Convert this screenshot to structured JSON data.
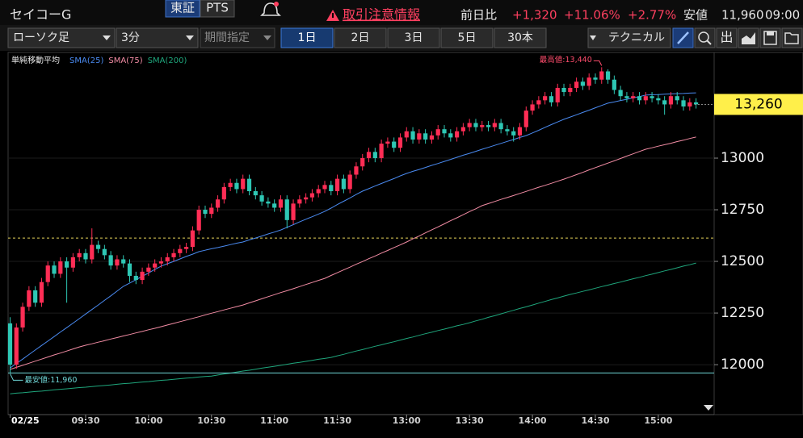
{
  "header": {
    "stock_name": "セイコーG",
    "market_tabs": [
      "東証",
      "PTS"
    ],
    "alert": "取引注意情報",
    "change_label": "前日比",
    "change": "+1,320",
    "change_pct": "+11.06%",
    "other_pct": "+2.77%",
    "low_label": "安値",
    "low": "11,960",
    "low_time": "09:00"
  },
  "toolbar": {
    "chart_type": "ローソク足",
    "interval": "3分",
    "period": "期間指定",
    "ranges": [
      "1日",
      "2日",
      "3日",
      "5日",
      "30本"
    ],
    "active_range": 0,
    "technical": "テクニカル",
    "icon_text": "出"
  },
  "chart_data": {
    "type": "candlestick",
    "title": "単純移動平均",
    "categories": [
      "02/25",
      null,
      null,
      null,
      null,
      null,
      null,
      null,
      null,
      null,
      null,
      null,
      "09:30",
      null,
      null,
      null,
      null,
      null,
      null,
      null,
      null,
      null,
      "10:00",
      null,
      null,
      null,
      null,
      null,
      null,
      null,
      null,
      null,
      "10:30",
      null,
      null,
      null,
      null,
      null,
      null,
      null,
      null,
      null,
      "11:00",
      null,
      null,
      null,
      null,
      null,
      null,
      null,
      null,
      null,
      "11:30",
      null,
      null,
      null,
      null,
      null,
      null,
      null,
      null,
      null,
      null,
      "13:00",
      null,
      null,
      null,
      null,
      null,
      null,
      null,
      null,
      null,
      "13:30",
      null,
      null,
      null,
      null,
      null,
      null,
      null,
      null,
      null,
      "14:00",
      null,
      null,
      null,
      null,
      null,
      null,
      null,
      null,
      null,
      "14:30",
      null,
      null,
      null,
      null,
      null,
      null,
      null,
      null,
      null,
      "15:00",
      null,
      null,
      null,
      null,
      null,
      null
    ],
    "open": [
      12200,
      12000,
      12180,
      12280,
      12360,
      12300,
      12400,
      12480,
      12440,
      12500,
      12470,
      12520,
      12540,
      12510,
      12580,
      12560,
      12530,
      12480,
      12510,
      12490,
      12430,
      12410,
      12450,
      12470,
      12490,
      12500,
      12520,
      12540,
      12560,
      12570,
      12650,
      12750,
      12730,
      12760,
      12800,
      12860,
      12880,
      12850,
      12900,
      12840,
      12820,
      12790,
      12780,
      12760,
      12800,
      12700,
      12780,
      12800,
      12810,
      12830,
      12850,
      12870,
      12840,
      12900,
      12850,
      12920,
      12960,
      13000,
      13030,
      13000,
      13070,
      13080,
      13050,
      13100,
      13130,
      13090,
      13120,
      13090,
      13110,
      13140,
      13120,
      13100,
      13130,
      13150,
      13170,
      13150,
      13160,
      13150,
      13170,
      13140,
      13130,
      13110,
      13150,
      13230,
      13260,
      13280,
      13300,
      13270,
      13340,
      13320,
      13340,
      13370,
      13350,
      13390,
      13380,
      13420,
      13380,
      13330,
      13300,
      13290,
      13300,
      13280,
      13300,
      13290,
      13280,
      13260,
      13300,
      13280,
      13250,
      13270
    ],
    "high": [
      12230,
      12200,
      12300,
      12380,
      12380,
      12420,
      12500,
      12500,
      12520,
      12520,
      12540,
      12560,
      12560,
      12660,
      12600,
      12580,
      12550,
      12530,
      12530,
      12510,
      12450,
      12470,
      12490,
      12510,
      12520,
      12540,
      12560,
      12580,
      12590,
      12670,
      12770,
      12770,
      12780,
      12820,
      12880,
      12900,
      12900,
      12920,
      12920,
      12860,
      12840,
      12810,
      12800,
      12820,
      12820,
      12800,
      12820,
      12830,
      12850,
      12870,
      12890,
      12890,
      12920,
      12920,
      12940,
      12980,
      13020,
      13050,
      13050,
      13090,
      13100,
      13100,
      13120,
      13150,
      13150,
      13140,
      13140,
      13130,
      13160,
      13160,
      13140,
      13150,
      13170,
      13190,
      13190,
      13180,
      13180,
      13190,
      13190,
      13160,
      13150,
      13170,
      13250,
      13280,
      13300,
      13320,
      13320,
      13360,
      13360,
      13360,
      13390,
      13390,
      13410,
      13410,
      13440,
      13430,
      13400,
      13350,
      13320,
      13320,
      13320,
      13320,
      13320,
      13310,
      13300,
      13320,
      13320,
      13300,
      13290,
      13290
    ],
    "low": [
      11960,
      11980,
      12160,
      12260,
      12280,
      12280,
      12380,
      12420,
      12420,
      12300,
      12450,
      12500,
      12490,
      12490,
      12540,
      12510,
      12460,
      12460,
      12470,
      12400,
      12390,
      12390,
      12430,
      12450,
      12470,
      12480,
      12500,
      12520,
      12540,
      12550,
      12630,
      12710,
      12710,
      12740,
      12780,
      12840,
      12830,
      12830,
      12820,
      12800,
      12770,
      12760,
      12740,
      12740,
      12660,
      12680,
      12760,
      12780,
      12790,
      12810,
      12830,
      12820,
      12820,
      12830,
      12830,
      12900,
      12940,
      12980,
      12980,
      12980,
      13050,
      13030,
      13030,
      13080,
      13070,
      13070,
      13070,
      13070,
      13090,
      13100,
      13080,
      13080,
      13110,
      13130,
      13130,
      13130,
      13130,
      13130,
      13120,
      13110,
      13080,
      13090,
      13130,
      13210,
      13240,
      13260,
      13250,
      13250,
      13300,
      13300,
      13320,
      13330,
      13330,
      13360,
      13360,
      13360,
      13310,
      13280,
      13270,
      13270,
      13260,
      13260,
      13270,
      13260,
      13210,
      13240,
      13260,
      13230,
      13230,
      13240
    ],
    "close": [
      12000,
      12180,
      12280,
      12360,
      12300,
      12400,
      12480,
      12440,
      12500,
      12470,
      12520,
      12540,
      12510,
      12580,
      12560,
      12530,
      12480,
      12510,
      12490,
      12430,
      12410,
      12450,
      12470,
      12490,
      12500,
      12520,
      12540,
      12560,
      12570,
      12650,
      12750,
      12730,
      12760,
      12800,
      12860,
      12880,
      12850,
      12900,
      12840,
      12820,
      12790,
      12780,
      12760,
      12800,
      12700,
      12780,
      12800,
      12810,
      12830,
      12850,
      12870,
      12840,
      12900,
      12850,
      12920,
      12960,
      13000,
      13030,
      13000,
      13070,
      13080,
      13050,
      13100,
      13130,
      13090,
      13120,
      13090,
      13110,
      13140,
      13120,
      13100,
      13130,
      13150,
      13170,
      13150,
      13160,
      13150,
      13170,
      13140,
      13130,
      13110,
      13150,
      13230,
      13260,
      13280,
      13300,
      13270,
      13340,
      13320,
      13340,
      13370,
      13350,
      13390,
      13380,
      13420,
      13380,
      13330,
      13300,
      13290,
      13300,
      13280,
      13300,
      13290,
      13280,
      13260,
      13300,
      13280,
      13250,
      13270,
      13260
    ],
    "up_color": "#ff2d55",
    "down_color": "#2ec7b4",
    "series": [
      {
        "name": "SMA(25)",
        "color": "#4a8af0",
        "values": [
          11984,
          12006,
          12027,
          12049,
          12071,
          12093,
          12114,
          12136,
          12158,
          12179,
          12201,
          12223,
          12245,
          12267,
          12289,
          12311,
          12333,
          12356,
          12379,
          12395,
          12411,
          12428,
          12444,
          12461,
          12477,
          12489,
          12500,
          12512,
          12524,
          12535,
          12547,
          12554,
          12561,
          12567,
          12574,
          12581,
          12588,
          12594,
          12604,
          12613,
          12623,
          12633,
          12642,
          12652,
          12665,
          12678,
          12691,
          12704,
          12716,
          12729,
          12742,
          12758,
          12775,
          12791,
          12807,
          12824,
          12840,
          12852,
          12865,
          12877,
          12889,
          12901,
          12914,
          12926,
          12936,
          12945,
          12955,
          12965,
          12974,
          12984,
          12994,
          13004,
          13014,
          13023,
          13033,
          13043,
          13052,
          13062,
          13071,
          13081,
          13090,
          13100,
          13109,
          13122,
          13135,
          13149,
          13162,
          13175,
          13188,
          13199,
          13210,
          13221,
          13232,
          13244,
          13255,
          13266,
          13272,
          13279,
          13285,
          13292,
          13298,
          13305,
          13307,
          13308,
          13310,
          13311,
          13312,
          13313,
          13315,
          13316
        ]
      },
      {
        "name": "SMA(75)",
        "color": "#f28ca4",
        "values": [
          11977,
          11987,
          11997,
          12007,
          12017,
          12027,
          12037,
          12047,
          12056,
          12066,
          12076,
          12086,
          12094,
          12101,
          12109,
          12116,
          12124,
          12131,
          12139,
          12146,
          12154,
          12161,
          12169,
          12176,
          12184,
          12192,
          12200,
          12208,
          12216,
          12224,
          12232,
          12241,
          12249,
          12257,
          12265,
          12273,
          12281,
          12289,
          12299,
          12309,
          12319,
          12329,
          12339,
          12349,
          12358,
          12368,
          12378,
          12388,
          12398,
          12408,
          12418,
          12432,
          12445,
          12459,
          12472,
          12486,
          12499,
          12513,
          12526,
          12540,
          12553,
          12567,
          12580,
          12594,
          12609,
          12623,
          12638,
          12653,
          12667,
          12682,
          12697,
          12711,
          12726,
          12741,
          12755,
          12770,
          12780,
          12790,
          12800,
          12809,
          12819,
          12829,
          12839,
          12849,
          12859,
          12868,
          12878,
          12888,
          12898,
          12909,
          12920,
          12931,
          12943,
          12954,
          12965,
          12976,
          12987,
          12998,
          13010,
          13021,
          13032,
          13043,
          13050,
          13058,
          13065,
          13072,
          13080,
          13087,
          13095,
          13102
        ]
      },
      {
        "name": "SMA(200)",
        "color": "#1fa67c",
        "values": [
          11859,
          11862,
          11864,
          11867,
          11870,
          11872,
          11875,
          11878,
          11881,
          11883,
          11886,
          11889,
          11891,
          11894,
          11897,
          11899,
          11902,
          11905,
          11908,
          11910,
          11913,
          11916,
          11918,
          11921,
          11924,
          11926,
          11929,
          11932,
          11935,
          11937,
          11940,
          11943,
          11945,
          11950,
          11955,
          11959,
          11964,
          11969,
          11973,
          11978,
          11983,
          11988,
          11992,
          11997,
          12002,
          12007,
          12011,
          12016,
          12021,
          12026,
          12030,
          12035,
          12043,
          12050,
          12058,
          12066,
          12073,
          12081,
          12089,
          12096,
          12104,
          12111,
          12119,
          12127,
          12134,
          12142,
          12150,
          12157,
          12165,
          12172,
          12180,
          12188,
          12195,
          12203,
          12212,
          12220,
          12229,
          12237,
          12246,
          12255,
          12263,
          12272,
          12280,
          12289,
          12298,
          12306,
          12315,
          12323,
          12332,
          12340,
          12347,
          12355,
          12362,
          12370,
          12378,
          12385,
          12393,
          12400,
          12408,
          12416,
          12423,
          12431,
          12438,
          12446,
          12454,
          12461,
          12469,
          12477,
          12484,
          12492
        ]
      }
    ],
    "ylim": [
      11766,
      13500
    ],
    "yticks": [
      12000,
      12250,
      12500,
      12750,
      13000
    ],
    "high_annotation": {
      "value": 13440,
      "label": "最高値:13,440"
    },
    "low_annotation": {
      "value": 11960,
      "label": "最安値:11,960"
    },
    "last_price": {
      "value": 13260,
      "label": "13,260"
    },
    "reference_line": 12613
  }
}
